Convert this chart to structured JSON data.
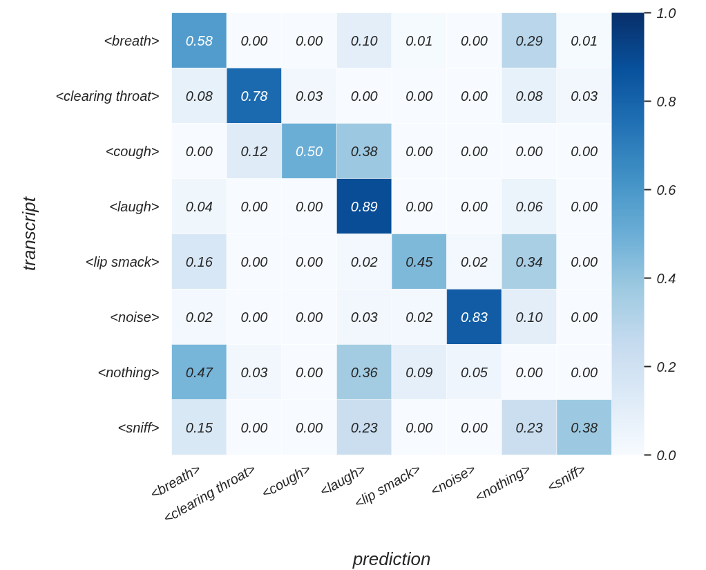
{
  "chart_data": {
    "type": "heatmap",
    "xlabel": "prediction",
    "ylabel": "transcript",
    "categories": [
      "<breath>",
      "<clearing throat>",
      "<cough>",
      "<laugh>",
      "<lip smack>",
      "<noise>",
      "<nothing>",
      "<sniff>"
    ],
    "y_categories": [
      "<breath>",
      "<clearing throat>",
      "<cough>",
      "<laugh>",
      "<lip smack>",
      "<noise>",
      "<nothing>",
      "<sniff>"
    ],
    "cells": [
      [
        0.58,
        0.0,
        0.0,
        0.1,
        0.01,
        0.0,
        0.29,
        0.01
      ],
      [
        0.08,
        0.78,
        0.03,
        0.0,
        0.0,
        0.0,
        0.08,
        0.03
      ],
      [
        0.0,
        0.12,
        0.5,
        0.38,
        0.0,
        0.0,
        0.0,
        0.0
      ],
      [
        0.04,
        0.0,
        0.0,
        0.89,
        0.0,
        0.0,
        0.06,
        0.0
      ],
      [
        0.16,
        0.0,
        0.0,
        0.02,
        0.45,
        0.02,
        0.34,
        0.0
      ],
      [
        0.02,
        0.0,
        0.0,
        0.03,
        0.02,
        0.83,
        0.1,
        0.0
      ],
      [
        0.47,
        0.03,
        0.0,
        0.36,
        0.09,
        0.05,
        0.0,
        0.0
      ],
      [
        0.15,
        0.0,
        0.0,
        0.23,
        0.0,
        0.0,
        0.23,
        0.38
      ]
    ],
    "cell_labels": [
      [
        "0.58",
        "0.00",
        "0.00",
        "0.10",
        "0.01",
        "0.00",
        "0.29",
        "0.01"
      ],
      [
        "0.08",
        "0.78",
        "0.03",
        "0.00",
        "0.00",
        "0.00",
        "0.08",
        "0.03"
      ],
      [
        "0.00",
        "0.12",
        "0.50",
        "0.38",
        "0.00",
        "0.00",
        "0.00",
        "0.00"
      ],
      [
        "0.04",
        "0.00",
        "0.00",
        "0.89",
        "0.00",
        "0.00",
        "0.06",
        "0.00"
      ],
      [
        "0.16",
        "0.00",
        "0.00",
        "0.02",
        "0.45",
        "0.02",
        "0.34",
        "0.00"
      ],
      [
        "0.02",
        "0.00",
        "0.00",
        "0.03",
        "0.02",
        "0.83",
        "0.10",
        "0.00"
      ],
      [
        "0.47",
        "0.03",
        "0.00",
        "0.36",
        "0.09",
        "0.05",
        "0.00",
        "0.00"
      ],
      [
        "0.15",
        "0.00",
        "0.00",
        "0.23",
        "0.00",
        "0.00",
        "0.23",
        "0.38"
      ]
    ],
    "clim": [
      0,
      1
    ],
    "cticks": [
      {
        "value": 0,
        "label": "0.0"
      },
      0.2,
      0.4,
      0.6,
      0.8,
      {
        "value": 1,
        "label": "1.0"
      }
    ]
  }
}
